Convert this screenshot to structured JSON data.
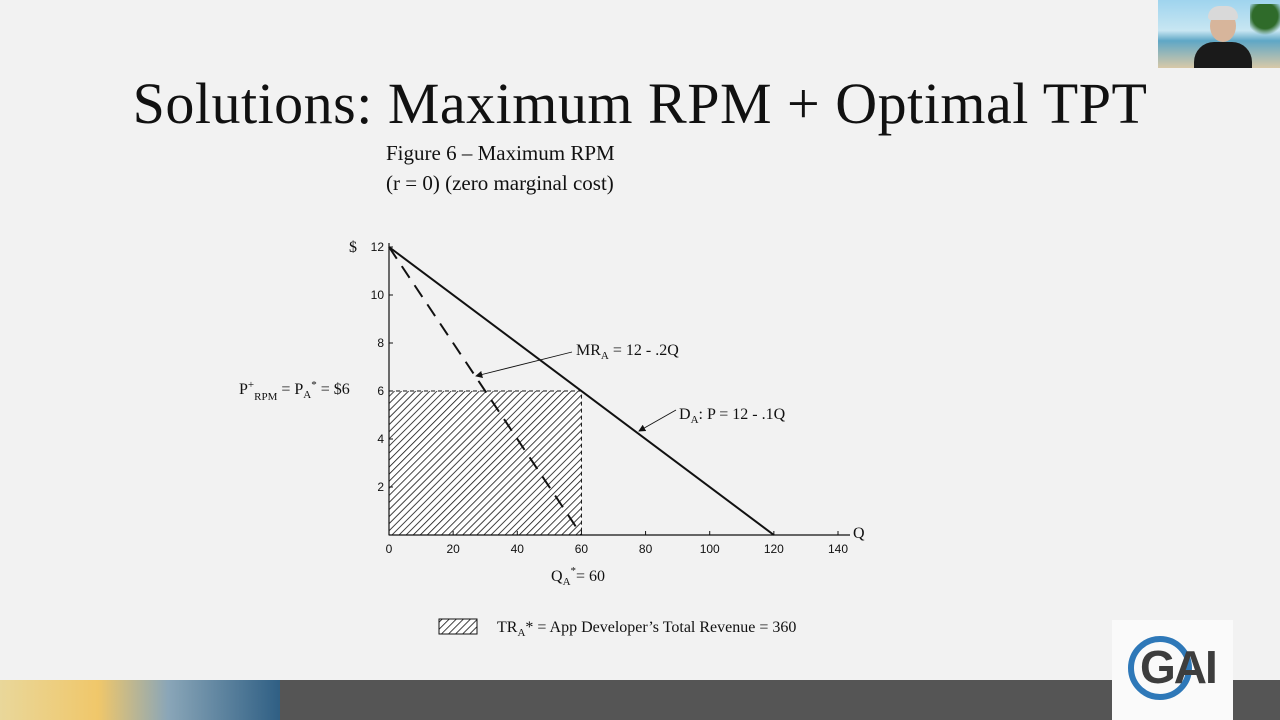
{
  "slide": {
    "title": "Solutions: Maximum RPM + Optimal TPT",
    "figure_title": "Figure 6 – Maximum RPM",
    "figure_subtitle": "(r = 0) (zero marginal cost)"
  },
  "logo": {
    "text": "GAI"
  },
  "colors": {
    "background": "#f2f2f2",
    "ink": "#111111",
    "bottom_bar": "#555555",
    "logo_blue": "#2e78b8"
  },
  "chart_data": {
    "type": "line",
    "xlim": [
      0,
      140
    ],
    "ylim": [
      0,
      12
    ],
    "x_ticks": [
      0,
      20,
      40,
      60,
      80,
      100,
      120,
      140
    ],
    "y_ticks": [
      2,
      4,
      6,
      8,
      10,
      12
    ],
    "xlabel": "Q",
    "ylabel": "$",
    "grid": false,
    "series": [
      {
        "name": "D_A: P = 12 - .1Q",
        "style": "solid",
        "points": [
          [
            0,
            12
          ],
          [
            120,
            0
          ]
        ]
      },
      {
        "name": "MR_A = 12 - .2Q",
        "style": "dashed",
        "points": [
          [
            0,
            12
          ],
          [
            60,
            0
          ]
        ]
      }
    ],
    "shaded_region": {
      "x": [
        0,
        60
      ],
      "y": [
        0,
        6
      ],
      "pattern": "hatched"
    },
    "annotations": {
      "demand": {
        "main": "D",
        "sub": "A",
        "rest": ": P = 12 - .1Q"
      },
      "mr": {
        "main": "MR",
        "sub": "A",
        "rest": " = 12 - .2Q"
      },
      "price": {
        "p1": "P",
        "sup1": "+",
        "sub1": "RPM",
        "mid": " = P",
        "sub2": "A",
        "sup2": "*",
        "rest": " = $6"
      },
      "quantity": {
        "main": "Q",
        "sub": "A",
        "sup": "*",
        "rest": "= 60"
      },
      "legend": {
        "main": "TR",
        "sub": "A",
        "rest": "* = App Developer’s Total Revenue = 360"
      }
    }
  }
}
